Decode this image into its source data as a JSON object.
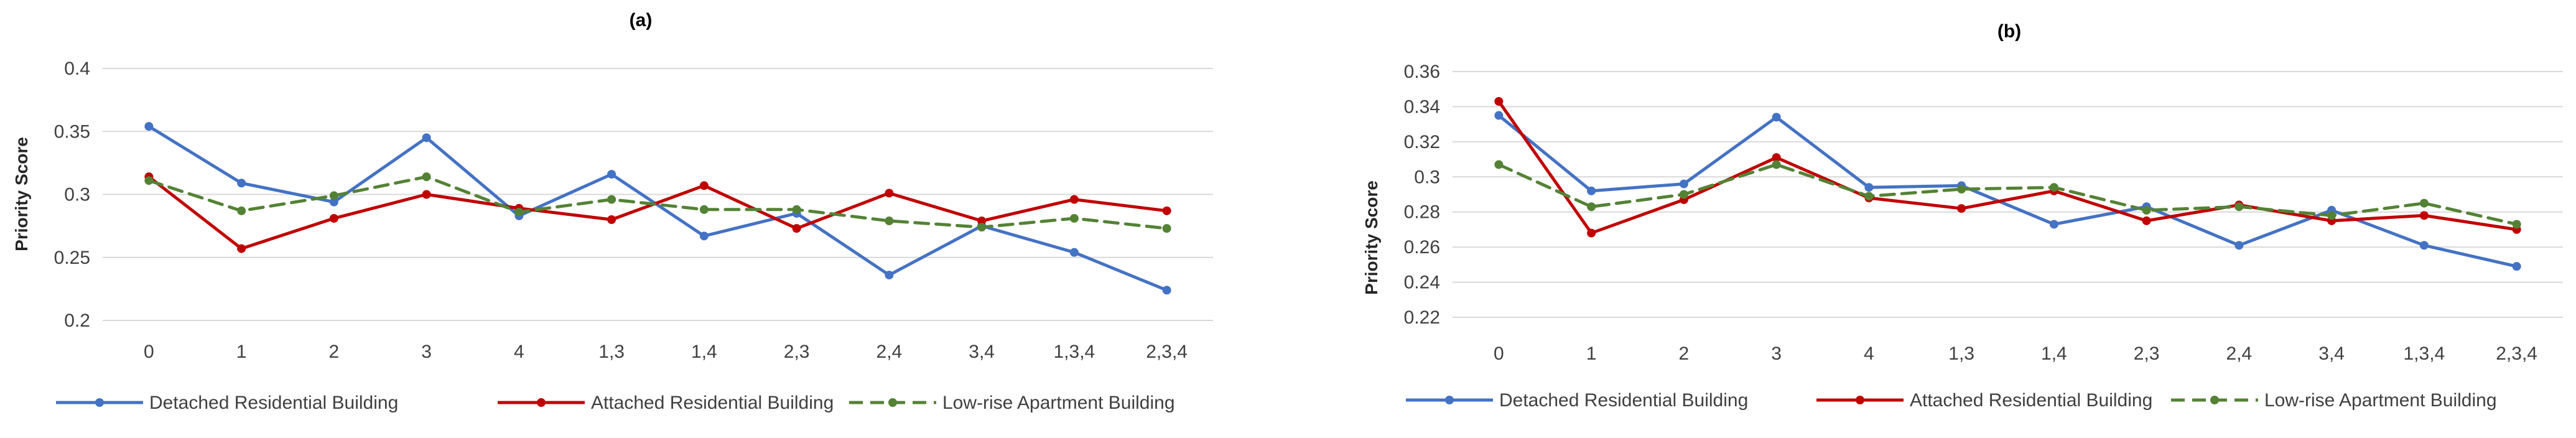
{
  "chart_data": [
    {
      "type": "line",
      "title": "(a)",
      "xlabel": "",
      "ylabel": "Priority  Score",
      "categories": [
        "0",
        "1",
        "2",
        "3",
        "4",
        "1,3",
        "1,4",
        "2,3",
        "2,4",
        "3,4",
        "1,3,4",
        "2,3,4"
      ],
      "yticks": [
        "0.2",
        "0.25",
        "0.3",
        "0.35",
        "0.4"
      ],
      "ylim": [
        0.2,
        0.4
      ],
      "ystep": 0.05,
      "grid": true,
      "legend": "bottom",
      "series": [
        {
          "name": "Detached Residential Building",
          "color": "#4472c4",
          "dash": false,
          "values": [
            0.354,
            0.309,
            0.294,
            0.345,
            0.283,
            0.316,
            0.267,
            0.285,
            0.236,
            0.275,
            0.254,
            0.224
          ]
        },
        {
          "name": "Attached Residential Building",
          "color": "#c00000",
          "dash": false,
          "values": [
            0.314,
            0.257,
            0.281,
            0.3,
            0.289,
            0.28,
            0.307,
            0.273,
            0.301,
            0.279,
            0.296,
            0.287
          ]
        },
        {
          "name": "Low-rise Apartment Building",
          "color": "#548235",
          "dash": true,
          "values": [
            0.311,
            0.287,
            0.299,
            0.314,
            0.286,
            0.296,
            0.288,
            0.288,
            0.279,
            0.274,
            0.281,
            0.273
          ]
        }
      ]
    },
    {
      "type": "line",
      "title": "(b)",
      "xlabel": "",
      "ylabel": "Priority  Score",
      "categories": [
        "0",
        "1",
        "2",
        "3",
        "4",
        "1,3",
        "1,4",
        "2,3",
        "2,4",
        "3,4",
        "1,3,4",
        "2,3,4"
      ],
      "yticks": [
        "0.22",
        "0.24",
        "0.26",
        "0.28",
        "0.3",
        "0.32",
        "0.34",
        "0.36"
      ],
      "ylim": [
        0.22,
        0.36
      ],
      "ystep": 0.02,
      "grid": true,
      "legend": "bottom",
      "series": [
        {
          "name": "Detached Residential Building",
          "color": "#4472c4",
          "dash": false,
          "values": [
            0.335,
            0.292,
            0.296,
            0.334,
            0.294,
            0.295,
            0.273,
            0.283,
            0.261,
            0.281,
            0.261,
            0.249
          ]
        },
        {
          "name": "Attached Residential Building",
          "color": "#c00000",
          "dash": false,
          "values": [
            0.343,
            0.268,
            0.287,
            0.311,
            0.288,
            0.282,
            0.292,
            0.275,
            0.284,
            0.275,
            0.278,
            0.27
          ]
        },
        {
          "name": "Low-rise Apartment Building",
          "color": "#548235",
          "dash": true,
          "values": [
            0.307,
            0.283,
            0.29,
            0.307,
            0.289,
            0.293,
            0.294,
            0.281,
            0.283,
            0.278,
            0.285,
            0.273
          ]
        }
      ]
    }
  ]
}
